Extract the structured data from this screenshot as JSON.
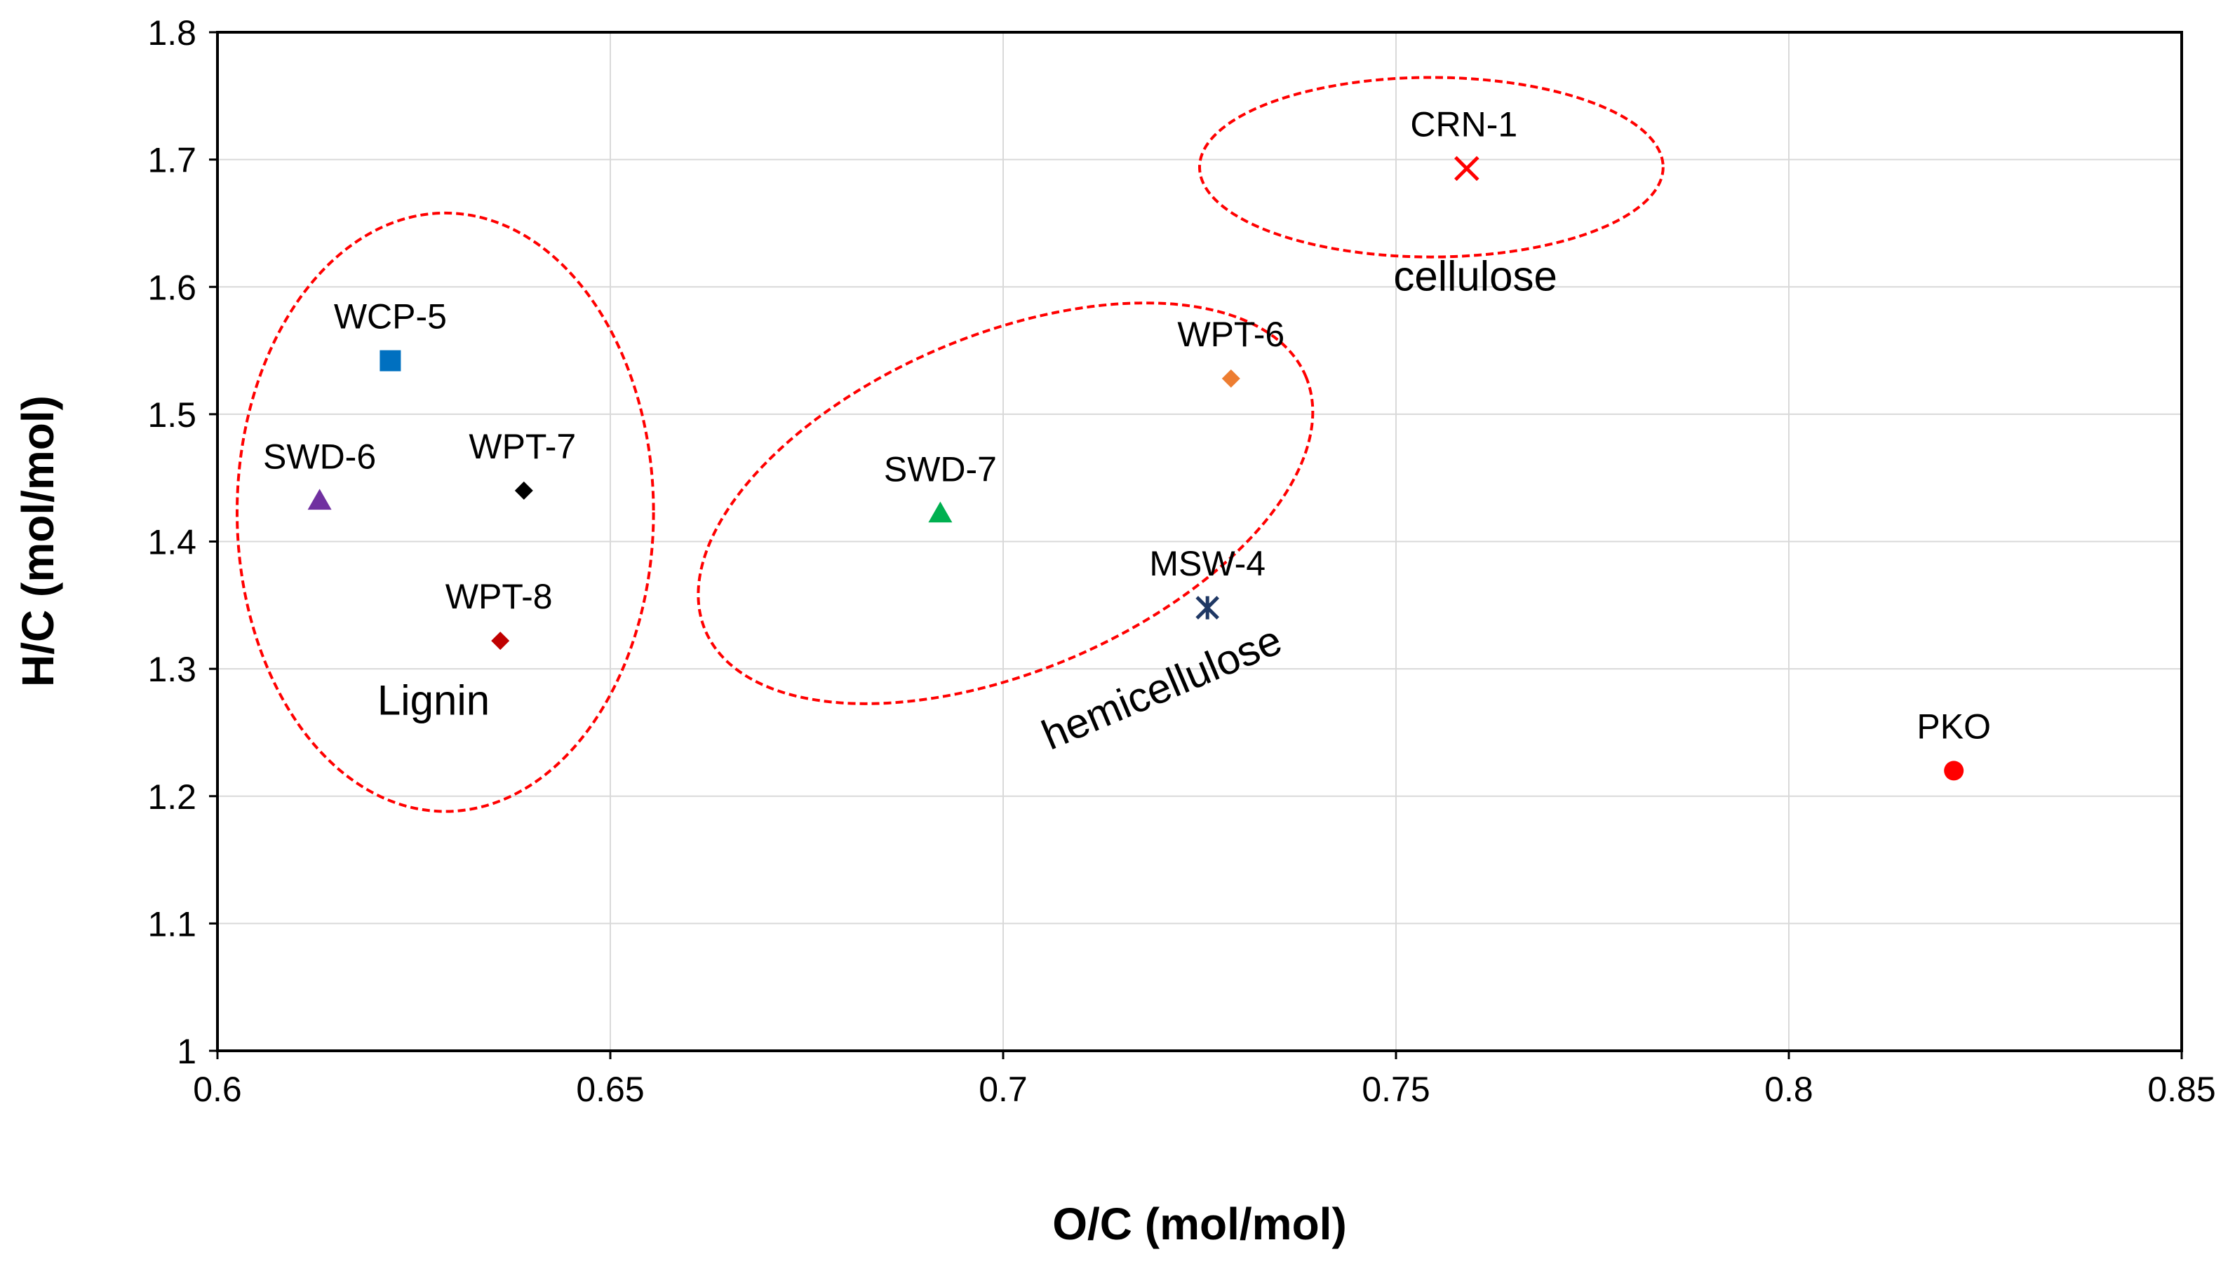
{
  "chart_data": {
    "type": "scatter",
    "title": "",
    "xlabel": "O/C (mol/mol)",
    "ylabel": "H/C (mol/mol)",
    "xlim": [
      0.6,
      0.85
    ],
    "ylim": [
      1.0,
      1.8
    ],
    "xticks": [
      0.6,
      0.65,
      0.7,
      0.75,
      0.8,
      0.85
    ],
    "xtick_labels": [
      "0.6",
      "0.65",
      "0.7",
      "0.75",
      "0.8",
      "0.85"
    ],
    "yticks": [
      1.0,
      1.1,
      1.2,
      1.3,
      1.4,
      1.5,
      1.6,
      1.7,
      1.8
    ],
    "ytick_labels": [
      "1",
      "1.1",
      "1.2",
      "1.3",
      "1.4",
      "1.5",
      "1.6",
      "1.7",
      "1.8"
    ],
    "grid": true,
    "points": [
      {
        "label": "WCP-5",
        "x": 0.622,
        "y": 1.542,
        "marker": "square",
        "color": "#0070c0"
      },
      {
        "label": "SWD-6",
        "x": 0.613,
        "y": 1.432,
        "marker": "triangle",
        "color": "#7030a0"
      },
      {
        "label": "WPT-7",
        "x": 0.639,
        "y": 1.44,
        "marker": "diamond",
        "color": "#000000"
      },
      {
        "label": "WPT-8",
        "x": 0.636,
        "y": 1.322,
        "marker": "diamond",
        "color": "#c00000"
      },
      {
        "label": "SWD-7",
        "x": 0.692,
        "y": 1.422,
        "marker": "triangle",
        "color": "#00b050"
      },
      {
        "label": "WPT-6",
        "x": 0.729,
        "y": 1.528,
        "marker": "diamond",
        "color": "#ed7d31"
      },
      {
        "label": "MSW-4",
        "x": 0.726,
        "y": 1.348,
        "marker": "star",
        "color": "#1f3864"
      },
      {
        "label": "CRN-1",
        "x": 0.759,
        "y": 1.693,
        "marker": "x",
        "color": "#ff0000"
      },
      {
        "label": "PKO",
        "x": 0.821,
        "y": 1.22,
        "marker": "circle",
        "color": "#ff0000"
      }
    ],
    "regions": [
      {
        "label": "Lignin",
        "cx": 0.629,
        "cy": 1.423,
        "rx": 0.0265,
        "ry": 0.235,
        "angle_deg": 0
      },
      {
        "label": "hemicellulose",
        "cx": 0.7003,
        "cy": 1.43,
        "rx": 0.0415,
        "ry": 0.132,
        "angle_deg": -23
      },
      {
        "label": "cellulose",
        "cx": 0.7545,
        "cy": 1.694,
        "rx": 0.0295,
        "ry": 0.0705,
        "angle_deg": 0
      }
    ]
  }
}
